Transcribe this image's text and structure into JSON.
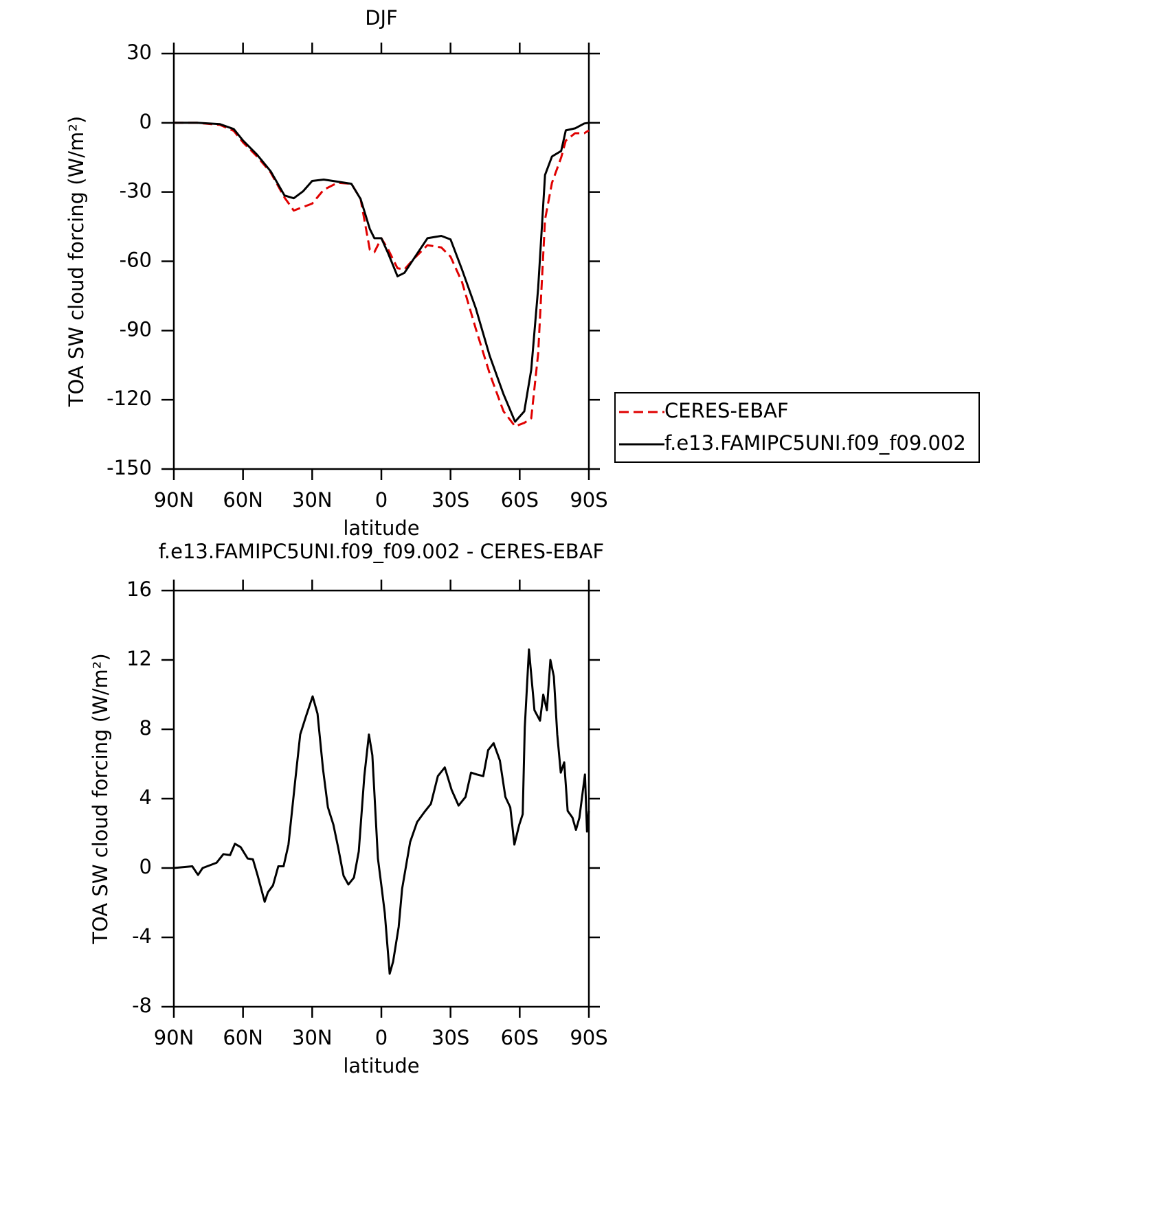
{
  "chart_data": [
    {
      "type": "line",
      "title": "DJF",
      "x_label": "latitude",
      "y_label": "TOA SW cloud forcing (W/m²)",
      "xlim": [
        90,
        -90
      ],
      "ylim": [
        -150,
        30
      ],
      "xticks": [
        {
          "value": 90,
          "label": "90N"
        },
        {
          "value": 60,
          "label": "60N"
        },
        {
          "value": 30,
          "label": "30N"
        },
        0,
        {
          "value": -30,
          "label": "30S"
        },
        {
          "value": -60,
          "label": "60S"
        },
        {
          "value": -90,
          "label": "90S"
        }
      ],
      "yticks": [
        -150,
        -120,
        -90,
        -60,
        -30,
        0,
        30
      ],
      "legend": "right",
      "x": [
        90,
        80,
        70,
        64,
        60,
        54,
        48,
        42,
        38,
        34,
        30,
        25,
        19,
        13,
        9,
        5,
        3,
        0,
        -3,
        -7,
        -10,
        -14,
        -20,
        -26,
        -30,
        -35,
        -41,
        -47,
        -53,
        -58,
        -62,
        -65,
        -68,
        -71,
        -74,
        -78,
        -80,
        -84,
        -88,
        -90
      ],
      "series": [
        {
          "name": "CERES-EBAF",
          "color": "#e00000",
          "linestyle": "dashed",
          "values": [
            0,
            0,
            -0.9,
            -3.5,
            -8.5,
            -14.5,
            -21.5,
            -32.4,
            -38,
            -36.5,
            -35,
            -29,
            -26,
            -26.4,
            -33,
            -55,
            -56,
            -50,
            -55,
            -63,
            -63.5,
            -59,
            -53,
            -54,
            -58,
            -69,
            -89.4,
            -108.7,
            -125,
            -131.5,
            -130,
            -128,
            -100,
            -41.9,
            -26,
            -15,
            -7.7,
            -4.5,
            -4.5,
            -3.3
          ]
        },
        {
          "name": "f.e13.FAMIPC5UNI.f09_f09.002",
          "color": "#000000",
          "linestyle": "solid",
          "values": [
            0,
            0,
            -0.6,
            -2.7,
            -7.7,
            -13.7,
            -21,
            -31.5,
            -32.7,
            -29.7,
            -25.2,
            -24.6,
            -25.5,
            -26.4,
            -33,
            -46,
            -50,
            -50,
            -56.7,
            -66.5,
            -65,
            -59,
            -50,
            -49,
            -50.5,
            -63.6,
            -80.5,
            -101,
            -117.6,
            -129.5,
            -125,
            -107,
            -71.6,
            -22.6,
            -14.6,
            -12.2,
            -3.3,
            -2.4,
            -0.3,
            0
          ]
        }
      ]
    },
    {
      "type": "line",
      "title": "f.e13.FAMIPC5UNI.f09_f09.002 - CERES-EBAF",
      "x_label": "latitude",
      "y_label": "TOA SW cloud forcing (W/m²)",
      "xlim": [
        90,
        -90
      ],
      "ylim": [
        -8,
        16
      ],
      "xticks": [
        {
          "value": 90,
          "label": "90N"
        },
        {
          "value": 60,
          "label": "60N"
        },
        {
          "value": 30,
          "label": "30N"
        },
        0,
        {
          "value": -30,
          "label": "30S"
        },
        {
          "value": -60,
          "label": "60S"
        },
        {
          "value": -90,
          "label": "90S"
        }
      ],
      "yticks": [
        -8,
        -4,
        0,
        4,
        8,
        12,
        16
      ],
      "x": [
        90,
        82,
        79.5,
        77.5,
        71.5,
        68.5,
        65.6,
        63.5,
        61,
        58,
        55.7,
        53.6,
        50.6,
        49.2,
        47,
        44.7,
        42.4,
        40.3,
        37.3,
        35.2,
        32.8,
        29.8,
        27.7,
        25.3,
        23.2,
        20.8,
        18.7,
        16.4,
        14.3,
        11.9,
        9.8,
        7.4,
        5.4,
        3.9,
        1.5,
        0,
        -1.5,
        -3.6,
        -5.1,
        -7.5,
        -9,
        -12.5,
        -15.5,
        -18.5,
        -21.5,
        -24.5,
        -27.5,
        -30.5,
        -33.5,
        -36.5,
        -38.9,
        -41.3,
        -44.2,
        -46.3,
        -48.7,
        -51.4,
        -53.8,
        -55.9,
        -57.7,
        -59.8,
        -61.3,
        -62.2,
        -64,
        -66.4,
        -68.8,
        -70.2,
        -71.8,
        -73.3,
        -74.8,
        -76.3,
        -77.8,
        -79.3,
        -80.8,
        -82.9,
        -84.4,
        -85.9,
        -88.3,
        -89.2,
        -90
      ],
      "series": [
        {
          "color": "#000000",
          "linestyle": "solid",
          "values": [
            0,
            0.1,
            -0.4,
            0,
            0.3,
            0.8,
            0.75,
            1.4,
            1.2,
            0.55,
            0.5,
            -0.45,
            -1.95,
            -1.4,
            -1,
            0.1,
            0.1,
            1.35,
            5.1,
            7.7,
            8.7,
            9.9,
            8.9,
            5.7,
            3.5,
            2.5,
            1.15,
            -0.45,
            -0.95,
            -0.55,
            0.95,
            5.3,
            7.7,
            6.5,
            0.55,
            -1,
            -2.6,
            -6.1,
            -5.4,
            -3.4,
            -1.2,
            1.5,
            2.65,
            3.2,
            3.7,
            5.3,
            5.8,
            4.5,
            3.6,
            4.1,
            5.5,
            5.4,
            5.3,
            6.8,
            7.2,
            6.2,
            4.1,
            3.5,
            1.35,
            2.5,
            3.1,
            8.1,
            12.6,
            9.1,
            8.5,
            10,
            9.1,
            12,
            11.05,
            7.7,
            5.5,
            6.1,
            3.3,
            2.9,
            2.2,
            2.9,
            5.4,
            2.1,
            3.3
          ]
        }
      ]
    }
  ]
}
